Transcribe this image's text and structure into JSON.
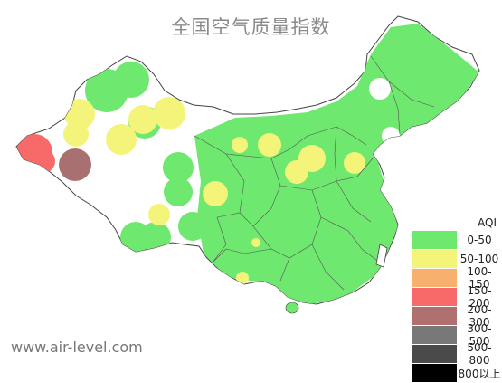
{
  "title": "全国空气质量指数",
  "legend": {
    "title": "AQI",
    "items": [
      {
        "label": "0-50",
        "color": "#6ee86e"
      },
      {
        "label": "50-100",
        "color": "#f4f47a"
      },
      {
        "label": "100-150",
        "color": "#f8b06e"
      },
      {
        "label": "150-200",
        "color": "#f86a6a"
      },
      {
        "label": "200-300",
        "color": "#b07070"
      },
      {
        "label": "300-500",
        "color": "#787878"
      },
      {
        "label": "500-800",
        "color": "#4a4a4a"
      },
      {
        "label": "800以上",
        "color": "#000000"
      }
    ]
  },
  "watermark": "www.air-level.com",
  "colors": {
    "good": "#6ee86e",
    "moderate": "#f4f47a",
    "unhealthy": "#f86a6a",
    "very_unhealthy": "#a87070",
    "border": "#444444"
  }
}
